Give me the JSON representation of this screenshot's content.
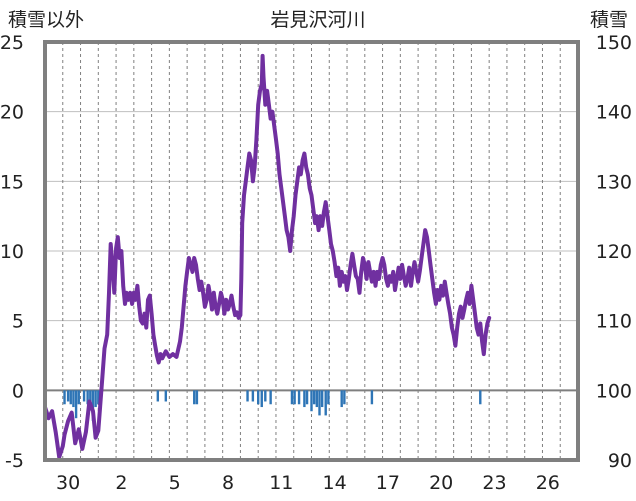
{
  "chart_data": {
    "type": "line",
    "title": "岩見沢河川",
    "left_axis_label": "積雪以外",
    "right_axis_label": "積雪",
    "y_left": {
      "min": -5,
      "max": 25,
      "ticks": [
        25,
        20,
        15,
        10,
        5,
        0,
        -5
      ]
    },
    "y_right": {
      "min": 90,
      "max": 150,
      "ticks": [
        150,
        140,
        130,
        120,
        110,
        100,
        90
      ]
    },
    "x": {
      "min": 0,
      "max": 30,
      "ticks": [
        {
          "pos": 1.3,
          "label": "30"
        },
        {
          "pos": 4.3,
          "label": "2"
        },
        {
          "pos": 7.3,
          "label": "5"
        },
        {
          "pos": 10.3,
          "label": "8"
        },
        {
          "pos": 13.3,
          "label": "11"
        },
        {
          "pos": 16.3,
          "label": "14"
        },
        {
          "pos": 19.3,
          "label": "17"
        },
        {
          "pos": 22.3,
          "label": "20"
        },
        {
          "pos": 25.3,
          "label": "23"
        },
        {
          "pos": 28.3,
          "label": "26"
        }
      ]
    },
    "grid": {
      "horizontal": true,
      "vertical_dashed": true
    },
    "line_color": "#7030a0",
    "bar_color": "#2e75b6",
    "series": [
      {
        "type": "line",
        "axis": "left",
        "points": [
          [
            0.0,
            -1.2
          ],
          [
            0.2,
            -2.0
          ],
          [
            0.4,
            -1.5
          ],
          [
            0.6,
            -3.0
          ],
          [
            0.8,
            -4.8
          ],
          [
            1.0,
            -4.0
          ],
          [
            1.1,
            -3.2
          ],
          [
            1.3,
            -2.2
          ],
          [
            1.5,
            -1.6
          ],
          [
            1.7,
            -3.8
          ],
          [
            1.9,
            -2.8
          ],
          [
            2.1,
            -4.2
          ],
          [
            2.3,
            -3.0
          ],
          [
            2.5,
            -0.8
          ],
          [
            2.7,
            -1.5
          ],
          [
            2.85,
            -3.4
          ],
          [
            3.0,
            -2.9
          ],
          [
            3.1,
            -1.2
          ],
          [
            3.2,
            0.5
          ],
          [
            3.35,
            3.0
          ],
          [
            3.5,
            4.0
          ],
          [
            3.6,
            7.0
          ],
          [
            3.7,
            10.5
          ],
          [
            3.8,
            9.0
          ],
          [
            3.9,
            7.0
          ],
          [
            4.0,
            10.2
          ],
          [
            4.1,
            11.0
          ],
          [
            4.2,
            9.5
          ],
          [
            4.3,
            10.0
          ],
          [
            4.4,
            7.5
          ],
          [
            4.5,
            6.2
          ],
          [
            4.6,
            7.0
          ],
          [
            4.7,
            6.5
          ],
          [
            4.8,
            7.0
          ],
          [
            4.9,
            6.2
          ],
          [
            5.0,
            7.0
          ],
          [
            5.1,
            6.5
          ],
          [
            5.2,
            7.5
          ],
          [
            5.3,
            6.0
          ],
          [
            5.4,
            5.0
          ],
          [
            5.5,
            4.8
          ],
          [
            5.6,
            5.5
          ],
          [
            5.7,
            4.5
          ],
          [
            5.8,
            6.5
          ],
          [
            5.9,
            6.8
          ],
          [
            6.0,
            5.5
          ],
          [
            6.1,
            4.0
          ],
          [
            6.2,
            3.2
          ],
          [
            6.3,
            2.5
          ],
          [
            6.4,
            2.0
          ],
          [
            6.5,
            2.6
          ],
          [
            6.6,
            2.3
          ],
          [
            6.8,
            2.8
          ],
          [
            7.0,
            2.4
          ],
          [
            7.2,
            2.6
          ],
          [
            7.4,
            2.4
          ],
          [
            7.6,
            3.5
          ],
          [
            7.7,
            4.5
          ],
          [
            7.8,
            6.0
          ],
          [
            7.9,
            7.5
          ],
          [
            8.0,
            8.5
          ],
          [
            8.1,
            9.5
          ],
          [
            8.2,
            9.0
          ],
          [
            8.3,
            8.5
          ],
          [
            8.4,
            9.5
          ],
          [
            8.5,
            9.0
          ],
          [
            8.6,
            8.0
          ],
          [
            8.7,
            7.2
          ],
          [
            8.8,
            7.8
          ],
          [
            8.9,
            7.0
          ],
          [
            9.0,
            6.0
          ],
          [
            9.1,
            6.5
          ],
          [
            9.2,
            7.5
          ],
          [
            9.3,
            6.8
          ],
          [
            9.4,
            5.8
          ],
          [
            9.5,
            7.0
          ],
          [
            9.6,
            6.0
          ],
          [
            9.7,
            5.5
          ],
          [
            9.8,
            6.2
          ],
          [
            9.9,
            7.0
          ],
          [
            10.0,
            6.5
          ],
          [
            10.1,
            5.5
          ],
          [
            10.2,
            6.5
          ],
          [
            10.3,
            5.8
          ],
          [
            10.4,
            6.2
          ],
          [
            10.5,
            6.8
          ],
          [
            10.6,
            6.0
          ],
          [
            10.7,
            5.4
          ],
          [
            10.8,
            5.6
          ],
          [
            10.9,
            5.2
          ],
          [
            11.0,
            5.4
          ],
          [
            11.05,
            8.0
          ],
          [
            11.1,
            12.0
          ],
          [
            11.2,
            14.0
          ],
          [
            11.3,
            15.0
          ],
          [
            11.4,
            16.0
          ],
          [
            11.5,
            17.0
          ],
          [
            11.6,
            16.5
          ],
          [
            11.7,
            15.0
          ],
          [
            11.8,
            16.0
          ],
          [
            11.9,
            18.0
          ],
          [
            12.0,
            20.5
          ],
          [
            12.1,
            21.5
          ],
          [
            12.2,
            22.0
          ],
          [
            12.25,
            24.0
          ],
          [
            12.3,
            22.5
          ],
          [
            12.4,
            20.5
          ],
          [
            12.5,
            21.5
          ],
          [
            12.6,
            20.5
          ],
          [
            12.7,
            19.5
          ],
          [
            12.8,
            20.0
          ],
          [
            12.9,
            19.0
          ],
          [
            13.0,
            18.0
          ],
          [
            13.1,
            17.0
          ],
          [
            13.2,
            15.5
          ],
          [
            13.3,
            14.5
          ],
          [
            13.4,
            13.5
          ],
          [
            13.5,
            12.5
          ],
          [
            13.6,
            11.5
          ],
          [
            13.7,
            11.0
          ],
          [
            13.8,
            10.0
          ],
          [
            13.9,
            11.5
          ],
          [
            14.0,
            12.5
          ],
          [
            14.1,
            14.0
          ],
          [
            14.2,
            15.0
          ],
          [
            14.3,
            16.0
          ],
          [
            14.4,
            15.5
          ],
          [
            14.5,
            16.5
          ],
          [
            14.6,
            17.0
          ],
          [
            14.7,
            16.0
          ],
          [
            14.8,
            15.5
          ],
          [
            14.9,
            14.5
          ],
          [
            15.0,
            14.0
          ],
          [
            15.1,
            13.0
          ],
          [
            15.2,
            12.0
          ],
          [
            15.3,
            12.5
          ],
          [
            15.4,
            11.5
          ],
          [
            15.5,
            12.5
          ],
          [
            15.6,
            11.8
          ],
          [
            15.7,
            12.8
          ],
          [
            15.8,
            13.5
          ],
          [
            15.9,
            12.5
          ],
          [
            16.0,
            11.5
          ],
          [
            16.1,
            10.5
          ],
          [
            16.2,
            10.0
          ],
          [
            16.3,
            9.2
          ],
          [
            16.4,
            8.2
          ],
          [
            16.5,
            8.8
          ],
          [
            16.6,
            7.5
          ],
          [
            16.7,
            8.5
          ],
          [
            16.8,
            7.8
          ],
          [
            16.9,
            8.2
          ],
          [
            17.0,
            7.2
          ],
          [
            17.1,
            8.0
          ],
          [
            17.2,
            9.0
          ],
          [
            17.3,
            9.8
          ],
          [
            17.4,
            9.0
          ],
          [
            17.5,
            8.2
          ],
          [
            17.6,
            8.0
          ],
          [
            17.7,
            7.0
          ],
          [
            17.8,
            8.5
          ],
          [
            17.9,
            9.5
          ],
          [
            18.0,
            9.0
          ],
          [
            18.1,
            8.0
          ],
          [
            18.2,
            9.2
          ],
          [
            18.3,
            8.5
          ],
          [
            18.4,
            7.8
          ],
          [
            18.5,
            8.5
          ],
          [
            18.6,
            7.5
          ],
          [
            18.7,
            8.5
          ],
          [
            18.8,
            8.0
          ],
          [
            18.9,
            9.0
          ],
          [
            19.0,
            9.5
          ],
          [
            19.1,
            9.0
          ],
          [
            19.2,
            8.0
          ],
          [
            19.3,
            7.5
          ],
          [
            19.4,
            8.2
          ],
          [
            19.5,
            7.8
          ],
          [
            19.6,
            8.5
          ],
          [
            19.7,
            7.2
          ],
          [
            19.8,
            8.0
          ],
          [
            19.9,
            8.8
          ],
          [
            20.0,
            8.0
          ],
          [
            20.1,
            9.0
          ],
          [
            20.2,
            8.2
          ],
          [
            20.3,
            7.5
          ],
          [
            20.4,
            8.0
          ],
          [
            20.5,
            8.8
          ],
          [
            20.6,
            7.5
          ],
          [
            20.7,
            8.5
          ],
          [
            20.8,
            9.2
          ],
          [
            20.9,
            8.5
          ],
          [
            21.0,
            7.8
          ],
          [
            21.1,
            8.6
          ],
          [
            21.2,
            9.6
          ],
          [
            21.3,
            10.5
          ],
          [
            21.4,
            11.5
          ],
          [
            21.5,
            11.0
          ],
          [
            21.6,
            10.0
          ],
          [
            21.7,
            9.0
          ],
          [
            21.8,
            8.0
          ],
          [
            21.9,
            7.0
          ],
          [
            22.0,
            6.2
          ],
          [
            22.1,
            7.2
          ],
          [
            22.2,
            6.5
          ],
          [
            22.3,
            7.5
          ],
          [
            22.4,
            6.8
          ],
          [
            22.5,
            7.8
          ],
          [
            22.6,
            7.0
          ],
          [
            22.7,
            6.2
          ],
          [
            22.8,
            5.5
          ],
          [
            22.9,
            4.5
          ],
          [
            23.0,
            4.0
          ],
          [
            23.1,
            3.2
          ],
          [
            23.2,
            4.5
          ],
          [
            23.3,
            5.5
          ],
          [
            23.4,
            6.0
          ],
          [
            23.5,
            5.2
          ],
          [
            23.6,
            5.8
          ],
          [
            23.7,
            6.5
          ],
          [
            23.8,
            7.0
          ],
          [
            23.9,
            6.2
          ],
          [
            24.0,
            7.5
          ],
          [
            24.1,
            6.5
          ],
          [
            24.2,
            5.5
          ],
          [
            24.3,
            4.5
          ],
          [
            24.4,
            4.0
          ],
          [
            24.5,
            4.8
          ],
          [
            24.6,
            3.5
          ],
          [
            24.7,
            2.6
          ],
          [
            24.8,
            4.0
          ],
          [
            24.9,
            4.8
          ],
          [
            25.0,
            5.2
          ]
        ]
      },
      {
        "type": "bar",
        "axis": "left",
        "baseline": 0,
        "bars": [
          [
            1.1,
            -1.0
          ],
          [
            1.3,
            -0.8
          ],
          [
            1.45,
            -1.0
          ],
          [
            1.6,
            -1.2
          ],
          [
            1.75,
            -2.0
          ],
          [
            1.9,
            -1.0
          ],
          [
            2.2,
            -0.8
          ],
          [
            2.4,
            -1.0
          ],
          [
            2.55,
            -0.8
          ],
          [
            2.7,
            -2.2
          ],
          [
            2.85,
            -1.2
          ],
          [
            3.0,
            -1.0
          ],
          [
            6.35,
            -0.8
          ],
          [
            6.8,
            -0.8
          ],
          [
            8.4,
            -1.0
          ],
          [
            8.55,
            -1.0
          ],
          [
            11.4,
            -0.8
          ],
          [
            11.7,
            -0.8
          ],
          [
            12.0,
            -1.0
          ],
          [
            12.2,
            -1.2
          ],
          [
            12.4,
            -0.8
          ],
          [
            12.7,
            -1.0
          ],
          [
            13.9,
            -1.0
          ],
          [
            14.05,
            -1.0
          ],
          [
            14.3,
            -1.0
          ],
          [
            14.6,
            -1.2
          ],
          [
            14.75,
            -1.0
          ],
          [
            15.0,
            -1.5
          ],
          [
            15.15,
            -1.0
          ],
          [
            15.3,
            -1.2
          ],
          [
            15.45,
            -1.8
          ],
          [
            15.6,
            -1.2
          ],
          [
            15.8,
            -1.8
          ],
          [
            15.95,
            -1.0
          ],
          [
            16.7,
            -1.2
          ],
          [
            16.85,
            -1.0
          ],
          [
            18.4,
            -1.0
          ],
          [
            24.5,
            -1.0
          ]
        ]
      }
    ]
  }
}
